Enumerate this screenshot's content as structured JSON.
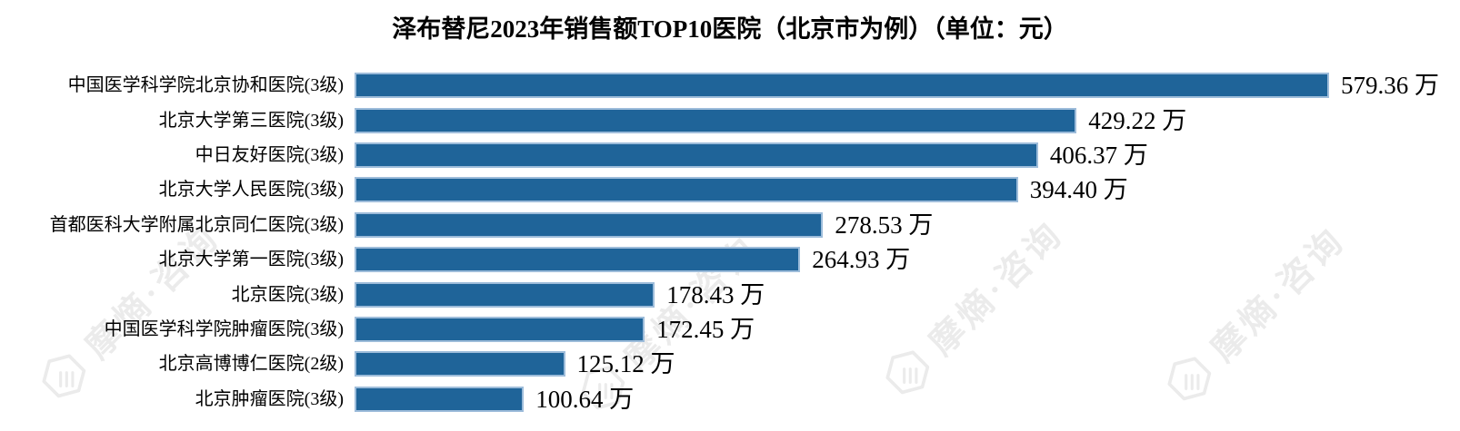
{
  "title": "泽布替尼2023年销售额TOP10医院（北京市为例）（单位：元）",
  "watermark": {
    "text": "摩熵·咨询",
    "color": "#ebebeb"
  },
  "colors": {
    "bar_fill": "#1f6499",
    "bar_border": "#9dbcda",
    "text": "#000000",
    "background": "#ffffff"
  },
  "chart_data": {
    "type": "bar",
    "orientation": "horizontal",
    "title": "泽布替尼2023年销售额TOP10医院（北京市为例）（单位：元）",
    "unit": "万元",
    "value_suffix": "万",
    "sort": "descending",
    "axis_visible": false,
    "grid": false,
    "xlim": [
      0,
      600
    ],
    "categories": [
      "中国医学科学院北京协和医院(3级)",
      "北京大学第三医院(3级)",
      "中日友好医院(3级)",
      "北京大学人民医院(3级)",
      "首都医科大学附属北京同仁医院(3级)",
      "北京大学第一医院(3级)",
      "北京医院(3级)",
      "中国医学科学院肿瘤医院(3级)",
      "北京高博博仁医院(2级)",
      "北京肿瘤医院(3级)"
    ],
    "values": [
      579.36,
      429.22,
      406.37,
      394.4,
      278.53,
      264.93,
      178.43,
      172.45,
      125.12,
      100.64
    ],
    "value_labels": [
      "579.36 万",
      "429.22 万",
      "406.37 万",
      "394.40 万",
      "278.53 万",
      "264.93 万",
      "178.43 万",
      "172.45 万",
      "125.12 万",
      "100.64 万"
    ]
  }
}
